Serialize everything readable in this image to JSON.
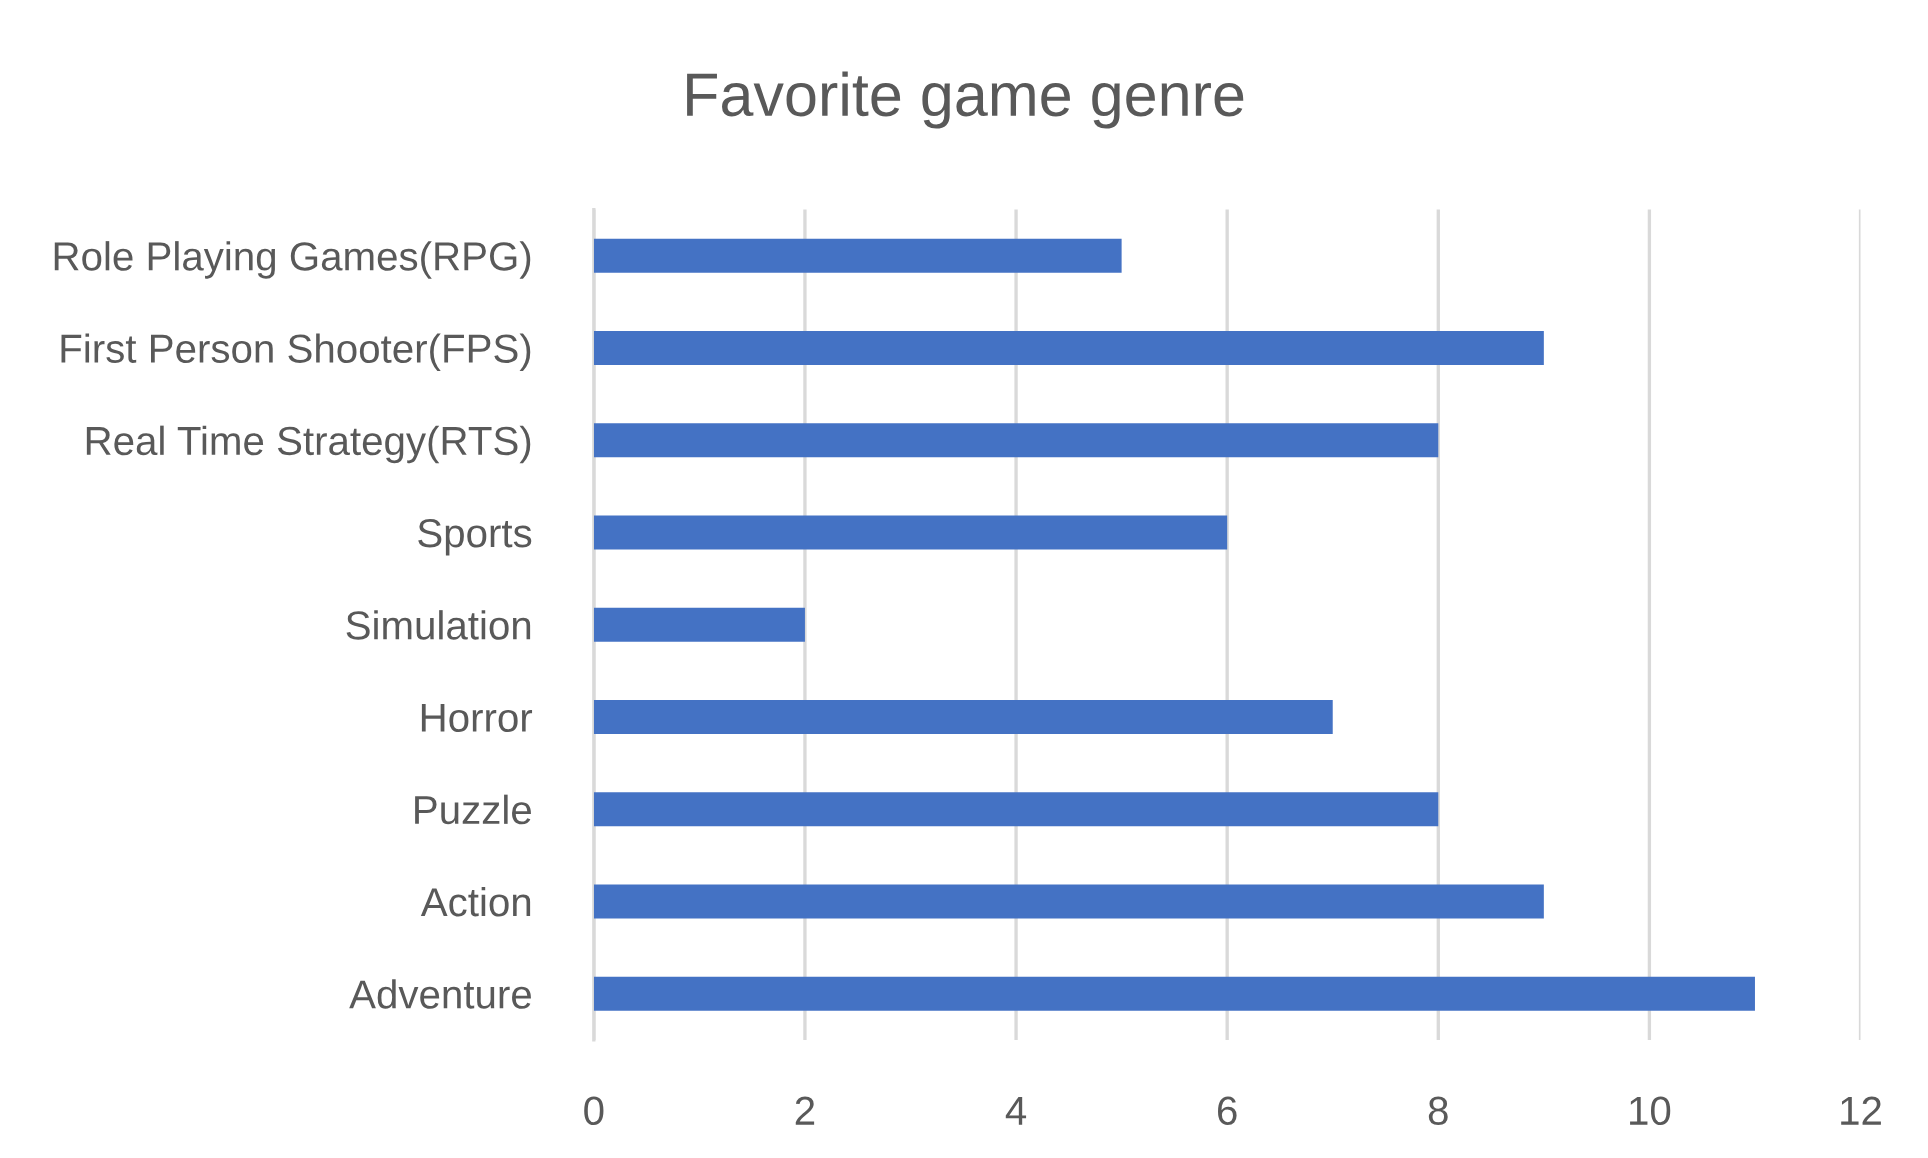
{
  "chart_data": {
    "type": "bar",
    "orientation": "horizontal",
    "title": "Favorite game genre",
    "categories": [
      "Role Playing Games(RPG)",
      "First Person Shooter(FPS)",
      "Real Time Strategy(RTS)",
      "Sports",
      "Simulation",
      "Horror",
      "Puzzle",
      "Action",
      "Adventure"
    ],
    "values": [
      5,
      9,
      8,
      6,
      2,
      7,
      8,
      9,
      11
    ],
    "color": "#4472c4",
    "xlim": [
      0,
      12
    ],
    "xticks": [
      0,
      2,
      4,
      6,
      8,
      10,
      12
    ],
    "grid": "x"
  }
}
